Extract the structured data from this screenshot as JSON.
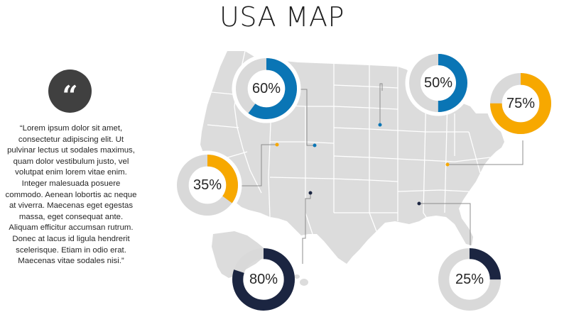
{
  "title": "USA MAP",
  "quote": {
    "icon": "quote-icon",
    "text": "“Lorem ipsum dolor sit amet, consectetur adipiscing elit. Ut pulvinar lectus ut sodales maximus, quam dolor vestibulum justo, vel volutpat enim lorem vitae enim. Integer malesuada posuere commodo. Aenean lobortis ac neque at viverra. Maecenas eget egestas massa, eget consequat ante. Aliquam efficitur accumsan rutrum. Donec at lacus id ligula hendrerit scelerisque. Etiam in odio erat. Maecenas vitae sodales nisi.”"
  },
  "colors": {
    "blue": "#0a75b5",
    "orange": "#f7a800",
    "navy": "#1b2541",
    "ring_bg": "#d9d9d9",
    "map": "#dcdcdc"
  },
  "donuts": [
    {
      "id": "donut-60",
      "label": "60%",
      "value": 0.6,
      "color": "blue",
      "halo": true
    },
    {
      "id": "donut-50",
      "label": "50%",
      "value": 0.5,
      "color": "blue",
      "halo": true
    },
    {
      "id": "donut-75",
      "label": "75%",
      "value": 0.75,
      "color": "orange",
      "halo": true
    },
    {
      "id": "donut-35",
      "label": "35%",
      "value": 0.35,
      "color": "orange",
      "halo": true
    },
    {
      "id": "donut-80",
      "label": "80%",
      "value": 0.8,
      "color": "navy",
      "halo": false
    },
    {
      "id": "donut-25",
      "label": "25%",
      "value": 0.25,
      "color": "navy",
      "halo": false
    }
  ]
}
